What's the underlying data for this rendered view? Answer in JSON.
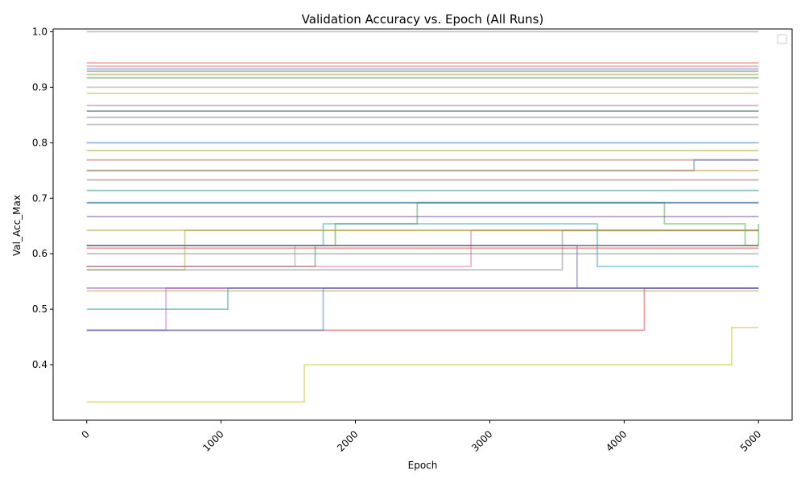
{
  "chart_data": {
    "type": "line",
    "step": true,
    "title": "Validation Accuracy vs. Epoch (All Runs)",
    "xlabel": "Epoch",
    "ylabel": "Val_Acc_Max",
    "xlim": [
      -250,
      5250
    ],
    "ylim": [
      0.3,
      1.005
    ],
    "xticks": [
      0,
      1000,
      2000,
      3000,
      4000,
      5000
    ],
    "xtick_labels": [
      "0",
      "1000",
      "2000",
      "3000",
      "4000",
      "5000"
    ],
    "yticks": [
      0.4,
      0.5,
      0.6,
      0.7,
      0.8,
      0.9,
      1.0
    ],
    "ytick_labels": [
      "0.4",
      "0.5",
      "0.6",
      "0.7",
      "0.8",
      "0.9",
      "1.0"
    ],
    "legend": {
      "position": "top-right",
      "entries": []
    },
    "grid": false,
    "series": [
      {
        "color": "#d4c030",
        "x": [
          0,
          1620,
          4800,
          5000
        ],
        "y": [
          0.333,
          0.4,
          0.467,
          0.467
        ]
      },
      {
        "color": "#e05050",
        "x": [
          0,
          4150,
          5000
        ],
        "y": [
          0.462,
          0.538,
          0.538
        ]
      },
      {
        "color": "#c070d0",
        "x": [
          0,
          590,
          5000
        ],
        "y": [
          0.462,
          0.538,
          0.538
        ]
      },
      {
        "color": "#5090d0",
        "x": [
          0,
          1760,
          5000
        ],
        "y": [
          0.462,
          0.538,
          0.538
        ]
      },
      {
        "color": "#30a0a0",
        "x": [
          0,
          1050,
          2700,
          5000
        ],
        "y": [
          0.5,
          0.538,
          0.538,
          0.538
        ]
      },
      {
        "color": "#b0a040",
        "x": [
          0,
          5000
        ],
        "y": [
          0.533,
          0.533
        ]
      },
      {
        "color": "#8040a0",
        "x": [
          0,
          5000
        ],
        "y": [
          0.538,
          0.538
        ]
      },
      {
        "color": "#7070c0",
        "x": [
          0,
          1160,
          3650,
          5000
        ],
        "y": [
          0.615,
          0.615,
          0.538,
          0.538
        ]
      },
      {
        "color": "#50a050",
        "x": [
          0,
          1700,
          1850,
          2000,
          2460,
          5000
        ],
        "y": [
          0.577,
          0.615,
          0.654,
          0.654,
          0.692,
          0.692
        ]
      },
      {
        "color": "#a0a0a0",
        "x": [
          0,
          1380,
          1550,
          5000
        ],
        "y": [
          0.577,
          0.577,
          0.615,
          0.615
        ]
      },
      {
        "color": "#e070b0",
        "x": [
          0,
          2860,
          5000
        ],
        "y": [
          0.577,
          0.642,
          0.642
        ]
      },
      {
        "color": "#909090",
        "x": [
          0,
          3080,
          5000
        ],
        "y": [
          0.6,
          0.6,
          0.6
        ]
      },
      {
        "color": "#c0b040",
        "x": [
          0,
          730,
          5000
        ],
        "y": [
          0.571,
          0.642,
          0.642
        ]
      },
      {
        "color": "#909090",
        "x": [
          0,
          3540,
          5000
        ],
        "y": [
          0.571,
          0.642,
          0.642
        ]
      },
      {
        "color": "#40a0c0",
        "x": [
          0,
          1760,
          3800,
          5000
        ],
        "y": [
          0.615,
          0.654,
          0.577,
          0.577
        ]
      },
      {
        "color": "#4080c0",
        "x": [
          0,
          5000
        ],
        "y": [
          0.615,
          0.615
        ]
      },
      {
        "color": "#50b050",
        "x": [
          0,
          4100,
          4300,
          4900,
          5000
        ],
        "y": [
          0.692,
          0.692,
          0.654,
          0.615,
          0.654
        ]
      },
      {
        "color": "#b0a040",
        "x": [
          0,
          5000
        ],
        "y": [
          0.642,
          0.642
        ]
      },
      {
        "color": "#a06060",
        "x": [
          0,
          5000
        ],
        "y": [
          0.615,
          0.615
        ]
      },
      {
        "color": "#e05050",
        "x": [
          0,
          5000
        ],
        "y": [
          0.61,
          0.61
        ]
      },
      {
        "color": "#5070d0",
        "x": [
          0,
          5000
        ],
        "y": [
          0.692,
          0.692
        ]
      },
      {
        "color": "#8050a0",
        "x": [
          0,
          5000
        ],
        "y": [
          0.667,
          0.667
        ]
      },
      {
        "color": "#409090",
        "x": [
          0,
          5000
        ],
        "y": [
          0.714,
          0.714
        ]
      },
      {
        "color": "#d07090",
        "x": [
          0,
          5000
        ],
        "y": [
          0.733,
          0.733
        ]
      },
      {
        "color": "#c06060",
        "x": [
          0,
          5000
        ],
        "y": [
          0.769,
          0.769
        ]
      },
      {
        "color": "#6080c0",
        "x": [
          0,
          4520,
          5000
        ],
        "y": [
          0.75,
          0.769,
          0.769
        ]
      },
      {
        "color": "#b0a030",
        "x": [
          0,
          5000
        ],
        "y": [
          0.786,
          0.786
        ]
      },
      {
        "color": "#4080c0",
        "x": [
          0,
          5000
        ],
        "y": [
          0.8,
          0.8
        ]
      },
      {
        "color": "#c05030",
        "x": [
          0,
          5000
        ],
        "y": [
          0.857,
          0.857
        ]
      },
      {
        "color": "#909090",
        "x": [
          0,
          5000
        ],
        "y": [
          0.833,
          0.833
        ]
      },
      {
        "color": "#a070c0",
        "x": [
          0,
          5000
        ],
        "y": [
          0.867,
          0.867
        ]
      },
      {
        "color": "#d0b040",
        "x": [
          0,
          5000
        ],
        "y": [
          0.889,
          0.889
        ]
      },
      {
        "color": "#a0a0a0",
        "x": [
          0,
          5000
        ],
        "y": [
          0.9,
          0.9
        ]
      },
      {
        "color": "#50a050",
        "x": [
          0,
          5000
        ],
        "y": [
          0.917,
          0.917
        ]
      },
      {
        "color": "#606060",
        "x": [
          0,
          5000
        ],
        "y": [
          0.929,
          0.929
        ]
      },
      {
        "color": "#5080c0",
        "x": [
          0,
          5000
        ],
        "y": [
          0.933,
          0.933
        ]
      },
      {
        "color": "#e06060",
        "x": [
          0,
          5000
        ],
        "y": [
          0.944,
          0.944
        ]
      },
      {
        "color": "#909090",
        "x": [
          0,
          5000
        ],
        "y": [
          1.0,
          1.0
        ]
      },
      {
        "color": "#a0a050",
        "x": [
          0,
          5000
        ],
        "y": [
          0.923,
          0.923
        ]
      },
      {
        "color": "#8070b0",
        "x": [
          0,
          5000
        ],
        "y": [
          0.846,
          0.846
        ]
      },
      {
        "color": "#e08080",
        "x": [
          0,
          2200,
          5000
        ],
        "y": [
          0.938,
          0.938,
          0.938
        ]
      },
      {
        "color": "#40b0b0",
        "x": [
          0,
          1700,
          5000
        ],
        "y": [
          0.857,
          0.857,
          0.857
        ]
      },
      {
        "color": "#c09040",
        "x": [
          0,
          5000
        ],
        "y": [
          0.75,
          0.75
        ]
      },
      {
        "color": "#b0b0b0",
        "x": [
          0,
          5000
        ],
        "y": [
          0.733,
          0.733
        ]
      }
    ]
  }
}
